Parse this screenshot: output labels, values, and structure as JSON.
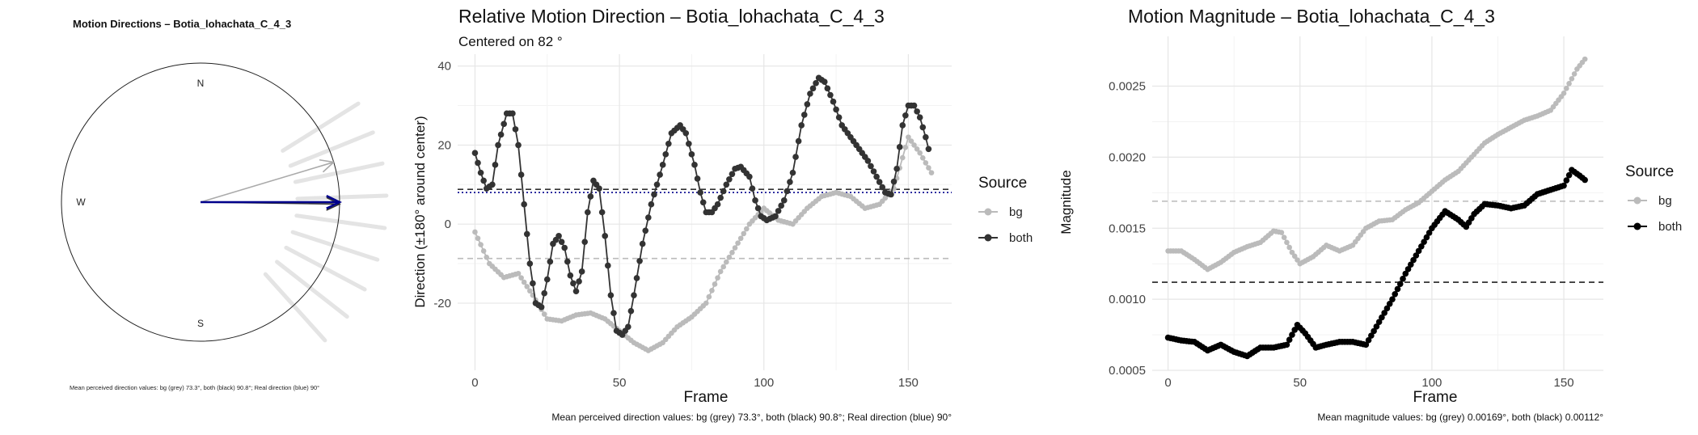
{
  "chart_data": [
    {
      "type": "polar-arrows",
      "title": "Motion Directions – Botia_lohachata_C_4_3",
      "compass": [
        "N",
        "W",
        "S"
      ],
      "caption": "Mean perceived direction values: bg (grey) 73.3°, both (black) 90.8°; Real direction (blue) 90°",
      "arrows": [
        {
          "label": "bg",
          "direction_deg": 73.3,
          "color": "#aaaaaa"
        },
        {
          "label": "both",
          "direction_deg": 90.8,
          "color": "#333333"
        },
        {
          "label": "real",
          "direction_deg": 90,
          "color": "#00008b"
        }
      ],
      "rays_deg": [
        58,
        68,
        78,
        88,
        98,
        108,
        118,
        128,
        138
      ],
      "colors": {
        "ray": "#e4e4e4",
        "circle": "#222222"
      }
    },
    {
      "type": "line",
      "title": "Relative Motion Direction – Botia_lohachata_C_4_3",
      "subtitle": "Centered on  82 °",
      "xlabel": "Frame",
      "ylabel": "Direction (±180° around center)",
      "xlim": [
        -6,
        165
      ],
      "ylim": [
        -37,
        43
      ],
      "xticks": [
        0,
        50,
        100,
        150
      ],
      "yticks": [
        -20,
        0,
        20,
        40
      ],
      "legend_title": "Source",
      "legend_position": "right",
      "caption": "Mean perceived direction values: bg (grey) 73.3°, both (black) 90.8°; Real direction (blue) 90°",
      "hlines": [
        {
          "y": 8.8,
          "color": "#333333",
          "dash": "7,5"
        },
        {
          "y": 8.0,
          "color": "#00008b",
          "dash": "2,3"
        },
        {
          "y": -8.7,
          "color": "#bbbbbb",
          "dash": "7,5"
        }
      ],
      "series": [
        {
          "name": "bg",
          "color": "#bbbbbb",
          "r": 3.3,
          "knots": [
            [
              0,
              -2
            ],
            [
              5,
              -10
            ],
            [
              10,
              -13.5
            ],
            [
              15,
              -12.5
            ],
            [
              20,
              -18
            ],
            [
              25,
              -24
            ],
            [
              30,
              -24.5
            ],
            [
              35,
              -23
            ],
            [
              40,
              -22.5
            ],
            [
              45,
              -24
            ],
            [
              50,
              -27
            ],
            [
              55,
              -30
            ],
            [
              60,
              -32
            ],
            [
              65,
              -30
            ],
            [
              70,
              -26
            ],
            [
              75,
              -23.5
            ],
            [
              80,
              -20
            ],
            [
              85,
              -12
            ],
            [
              90,
              -6
            ],
            [
              95,
              0
            ],
            [
              100,
              4
            ],
            [
              105,
              1
            ],
            [
              110,
              0
            ],
            [
              115,
              4
            ],
            [
              120,
              7
            ],
            [
              125,
              8
            ],
            [
              130,
              7
            ],
            [
              135,
              4
            ],
            [
              140,
              5
            ],
            [
              145,
              9
            ],
            [
              150,
              22
            ],
            [
              154,
              18
            ],
            [
              158,
              13
            ]
          ]
        },
        {
          "name": "both",
          "color": "#333333",
          "r": 3.8,
          "knots": [
            [
              0,
              18
            ],
            [
              2,
              13
            ],
            [
              4,
              9
            ],
            [
              6,
              10
            ],
            [
              8,
              20
            ],
            [
              11,
              28
            ],
            [
              13,
              28
            ],
            [
              15,
              20
            ],
            [
              17,
              5
            ],
            [
              19,
              -10
            ],
            [
              21,
              -20
            ],
            [
              23,
              -21
            ],
            [
              25,
              -14
            ],
            [
              27,
              -5
            ],
            [
              29,
              -3
            ],
            [
              31,
              -6
            ],
            [
              33,
              -13
            ],
            [
              35,
              -17
            ],
            [
              37,
              -12
            ],
            [
              39,
              3
            ],
            [
              41,
              11
            ],
            [
              43,
              9
            ],
            [
              45,
              -3
            ],
            [
              47,
              -18
            ],
            [
              49,
              -27
            ],
            [
              51,
              -28
            ],
            [
              53,
              -26
            ],
            [
              55,
              -18
            ],
            [
              58,
              -5
            ],
            [
              61,
              5
            ],
            [
              65,
              15
            ],
            [
              68,
              23
            ],
            [
              71,
              25
            ],
            [
              73,
              23
            ],
            [
              76,
              15
            ],
            [
              78,
              8
            ],
            [
              80,
              3
            ],
            [
              82,
              3
            ],
            [
              84,
              5
            ],
            [
              87,
              10
            ],
            [
              90,
              14
            ],
            [
              92,
              14.5
            ],
            [
              95,
              12
            ],
            [
              97,
              6
            ],
            [
              99,
              2
            ],
            [
              101,
              1
            ],
            [
              104,
              2
            ],
            [
              107,
              6
            ],
            [
              110,
              13
            ],
            [
              113,
              25
            ],
            [
              116,
              33
            ],
            [
              119,
              37
            ],
            [
              121,
              36
            ],
            [
              124,
              31
            ],
            [
              127,
              25
            ],
            [
              130,
              22
            ],
            [
              133,
              19
            ],
            [
              136,
              16
            ],
            [
              139,
              12
            ],
            [
              142,
              8
            ],
            [
              144,
              7.5
            ],
            [
              146,
              14
            ],
            [
              148,
              25
            ],
            [
              150,
              30
            ],
            [
              152,
              30
            ],
            [
              154,
              27
            ],
            [
              156,
              22
            ],
            [
              157,
              19
            ]
          ]
        }
      ]
    },
    {
      "type": "line",
      "title": "Motion Magnitude – Botia_lohachata_C_4_3",
      "xlabel": "Frame",
      "ylabel": "Magnitude",
      "xlim": [
        -6,
        165
      ],
      "ylim": [
        0.0005,
        0.00285
      ],
      "xticks": [
        0,
        50,
        100,
        150
      ],
      "yticks": [
        0.0005,
        0.001,
        0.0015,
        0.002,
        0.0025
      ],
      "ytick_labels": [
        "0.0005",
        "0.0010",
        "0.0015",
        "0.0020",
        "0.0025"
      ],
      "legend_title": "Source",
      "legend_position": "right",
      "caption": "Mean magnitude values: bg (grey) 0.00169°, both (black) 0.00112°",
      "hlines": [
        {
          "y": 0.00169,
          "color": "#bbbbbb",
          "dash": "7,5"
        },
        {
          "y": 0.00112,
          "color": "#222222",
          "dash": "7,5"
        }
      ],
      "series": [
        {
          "name": "bg",
          "color": "#bbbbbb",
          "r": 3.3,
          "knots": [
            [
              0,
              0.00134
            ],
            [
              5,
              0.00134
            ],
            [
              10,
              0.00128
            ],
            [
              15,
              0.00121
            ],
            [
              20,
              0.00126
            ],
            [
              25,
              0.00133
            ],
            [
              30,
              0.00137
            ],
            [
              35,
              0.0014
            ],
            [
              40,
              0.00148
            ],
            [
              43,
              0.00147
            ],
            [
              47,
              0.00133
            ],
            [
              50,
              0.00125
            ],
            [
              55,
              0.0013
            ],
            [
              60,
              0.00138
            ],
            [
              65,
              0.00134
            ],
            [
              70,
              0.00138
            ],
            [
              75,
              0.0015
            ],
            [
              80,
              0.00155
            ],
            [
              85,
              0.00156
            ],
            [
              90,
              0.00163
            ],
            [
              95,
              0.00168
            ],
            [
              100,
              0.00176
            ],
            [
              105,
              0.00184
            ],
            [
              110,
              0.0019
            ],
            [
              115,
              0.002
            ],
            [
              120,
              0.0021
            ],
            [
              125,
              0.00216
            ],
            [
              130,
              0.00221
            ],
            [
              135,
              0.00226
            ],
            [
              140,
              0.00229
            ],
            [
              145,
              0.00233
            ],
            [
              150,
              0.00245
            ],
            [
              155,
              0.00262
            ],
            [
              158,
              0.00269
            ]
          ]
        },
        {
          "name": "both",
          "color": "#000000",
          "r": 3.8,
          "knots": [
            [
              0,
              0.00073
            ],
            [
              5,
              0.00071
            ],
            [
              10,
              0.0007
            ],
            [
              15,
              0.00064
            ],
            [
              20,
              0.00068
            ],
            [
              25,
              0.00063
            ],
            [
              30,
              0.0006
            ],
            [
              35,
              0.00066
            ],
            [
              40,
              0.00066
            ],
            [
              45,
              0.00068
            ],
            [
              49,
              0.00082
            ],
            [
              52,
              0.00076
            ],
            [
              56,
              0.00066
            ],
            [
              60,
              0.00068
            ],
            [
              65,
              0.0007
            ],
            [
              70,
              0.0007
            ],
            [
              75,
              0.00068
            ],
            [
              80,
              0.00084
            ],
            [
              85,
              0.001
            ],
            [
              90,
              0.00118
            ],
            [
              95,
              0.00134
            ],
            [
              100,
              0.0015
            ],
            [
              105,
              0.00162
            ],
            [
              110,
              0.00156
            ],
            [
              113,
              0.00151
            ],
            [
              116,
              0.0016
            ],
            [
              120,
              0.00167
            ],
            [
              125,
              0.00166
            ],
            [
              130,
              0.00164
            ],
            [
              135,
              0.00166
            ],
            [
              140,
              0.00174
            ],
            [
              145,
              0.00177
            ],
            [
              150,
              0.0018
            ],
            [
              153,
              0.00191
            ],
            [
              156,
              0.00187
            ],
            [
              158,
              0.00184
            ]
          ]
        }
      ]
    }
  ]
}
